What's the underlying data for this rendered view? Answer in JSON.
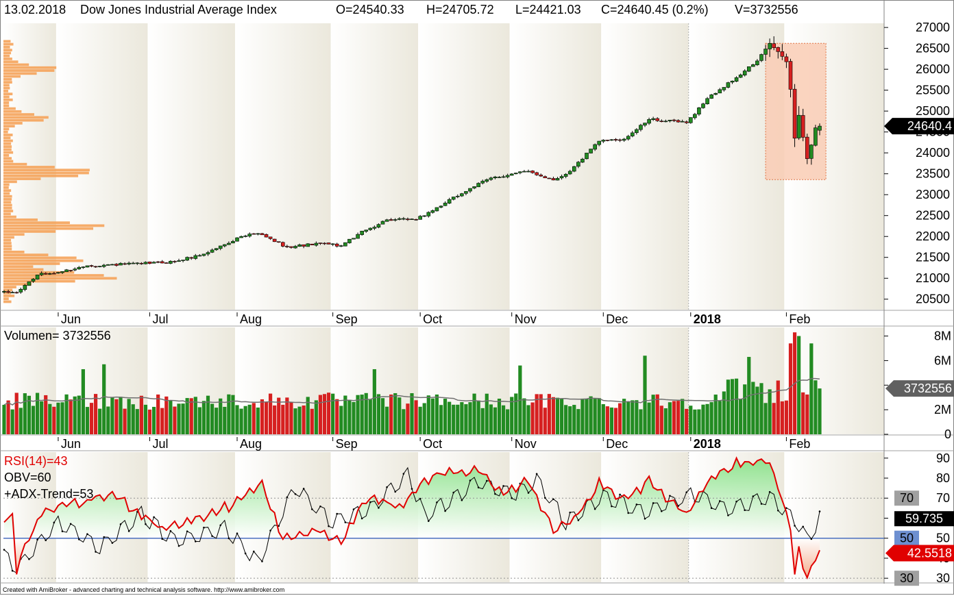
{
  "header": {
    "date": "13.02.2018",
    "symbol": "Dow Jones Industrial Average Index",
    "open": "O=24540.33",
    "high": "H=24705.72",
    "low": "L=24421.03",
    "close": "C=24640.45 (0.2%)",
    "volume": "V=3732556"
  },
  "month_labels": [
    "Jun",
    "Jul",
    "Aug",
    "Sep",
    "Oct",
    "Nov",
    "Dec",
    "2018",
    "Feb"
  ],
  "footer": "Created with AmiBroker - advanced charting and technical analysis software. http://www.amibroker.com",
  "colors": {
    "up": "#228b22",
    "down": "#d62020",
    "volume_profile": "#f5a35a",
    "rsi": "#e00000",
    "obv": "#000000",
    "level50": "#4a6fc0",
    "highlight_box": "#f9cdb5",
    "price_tag": "#000000",
    "volume_tag": "#606060"
  },
  "chart_data": [
    {
      "type": "candlestick",
      "title": "Dow Jones Industrial Average Index",
      "y_ticks": [
        20500,
        21000,
        21500,
        22000,
        22500,
        23000,
        23500,
        24000,
        24500,
        25000,
        25500,
        26000,
        26500,
        27000
      ],
      "ylim": [
        20250,
        27100
      ],
      "last_price_label": "24640.4",
      "last_price": 24640.45,
      "waypoints": [
        {
          "date": "2017-05-18",
          "close": 20660
        },
        {
          "date": "2017-05-25",
          "close": 21080
        },
        {
          "date": "2017-06-01",
          "close": 21140
        },
        {
          "date": "2017-06-12",
          "close": 21300
        },
        {
          "date": "2017-06-29",
          "close": 21350
        },
        {
          "date": "2017-07-11",
          "close": 21400
        },
        {
          "date": "2017-07-20",
          "close": 21580
        },
        {
          "date": "2017-08-02",
          "close": 22000
        },
        {
          "date": "2017-08-08",
          "close": 22070
        },
        {
          "date": "2017-08-17",
          "close": 21750
        },
        {
          "date": "2017-08-29",
          "close": 21830
        },
        {
          "date": "2017-09-05",
          "close": 21780
        },
        {
          "date": "2017-09-11",
          "close": 22050
        },
        {
          "date": "2017-09-20",
          "close": 22400
        },
        {
          "date": "2017-09-29",
          "close": 22400
        },
        {
          "date": "2017-10-10",
          "close": 22800
        },
        {
          "date": "2017-10-18",
          "close": 23150
        },
        {
          "date": "2017-10-25",
          "close": 23400
        },
        {
          "date": "2017-11-07",
          "close": 23560
        },
        {
          "date": "2017-11-15",
          "close": 23350
        },
        {
          "date": "2017-11-21",
          "close": 23560
        },
        {
          "date": "2017-11-30",
          "close": 24280
        },
        {
          "date": "2017-12-04",
          "close": 24300
        },
        {
          "date": "2017-12-08",
          "close": 24330
        },
        {
          "date": "2017-12-18",
          "close": 24800
        },
        {
          "date": "2017-12-29",
          "close": 24720
        },
        {
          "date": "2018-01-05",
          "close": 25300
        },
        {
          "date": "2018-01-16",
          "close": 25800
        },
        {
          "date": "2018-01-23",
          "close": 26200
        },
        {
          "date": "2018-01-26",
          "close": 26620
        },
        {
          "date": "2018-02-01",
          "close": 26180
        },
        {
          "date": "2018-02-02",
          "close": 25520
        },
        {
          "date": "2018-02-05",
          "close": 24350
        },
        {
          "date": "2018-02-06",
          "close": 24900
        },
        {
          "date": "2018-02-08",
          "close": 23860
        },
        {
          "date": "2018-02-09",
          "close": 24190
        },
        {
          "date": "2018-02-12",
          "close": 24600
        },
        {
          "date": "2018-02-13",
          "close": 24640
        }
      ],
      "highlight_region": {
        "from": "2018-01-26",
        "to": "2018-02-13",
        "low": 23360,
        "high": 26620
      },
      "volume_profile": {
        "price_bins_from": 20400,
        "price_bins_to": 26700,
        "peaks": [
          {
            "price": 20990,
            "strength": 1.0
          },
          {
            "price": 21400,
            "strength": 0.85
          },
          {
            "price": 22200,
            "strength": 0.8
          },
          {
            "price": 23500,
            "strength": 1.0
          },
          {
            "price": 24800,
            "strength": 0.3
          },
          {
            "price": 25950,
            "strength": 0.4
          }
        ]
      }
    },
    {
      "type": "bar",
      "title": "Volumen= 3732556",
      "y_ticks": [
        0,
        2,
        4,
        6,
        8
      ],
      "y_tick_labels": [
        "0",
        "2M",
        "4M",
        "6M",
        "8M"
      ],
      "ylim": [
        0,
        8.7
      ],
      "unit": "millions",
      "last_value_label": "3732556",
      "last_value": 3.73,
      "notable_bars": [
        {
          "date": "2017-06-09",
          "volume": 5.3
        },
        {
          "date": "2017-06-16",
          "volume": 5.7
        },
        {
          "date": "2017-09-15",
          "volume": 5.3
        },
        {
          "date": "2017-11-03",
          "volume": 5.6
        },
        {
          "date": "2017-12-15",
          "volume": 6.4
        },
        {
          "date": "2018-01-19",
          "volume": 6.3
        },
        {
          "date": "2018-02-02",
          "volume": 7.4
        },
        {
          "date": "2018-02-05",
          "volume": 8.3
        },
        {
          "date": "2018-02-06",
          "volume": 8.0
        },
        {
          "date": "2018-02-09",
          "volume": 7.4
        }
      ]
    },
    {
      "type": "line",
      "title": "RSI(14)=43",
      "legend": [
        "RSI(14)=43",
        "OBV=60",
        "+ADX-Trend=53"
      ],
      "y_ticks": [
        30,
        40,
        50,
        60,
        70,
        80,
        90
      ],
      "ylim": [
        28,
        93
      ],
      "levels": [
        30,
        50,
        70
      ],
      "value_tags": [
        {
          "label": "70",
          "value": 70
        },
        {
          "label": "59.735",
          "value": 59.735
        },
        {
          "label": "50",
          "value": 50
        },
        {
          "label": "42.5518",
          "value": 42.55
        },
        {
          "label": "30",
          "value": 30
        }
      ],
      "series": [
        {
          "name": "RSI(14)",
          "points": [
            {
              "date": "2017-05-15",
              "value": 60
            },
            {
              "date": "2017-05-17",
              "value": 62
            },
            {
              "date": "2017-05-18",
              "value": 35
            },
            {
              "date": "2017-05-26",
              "value": 63
            },
            {
              "date": "2017-06-09",
              "value": 68
            },
            {
              "date": "2017-06-20",
              "value": 72
            },
            {
              "date": "2017-07-06",
              "value": 55
            },
            {
              "date": "2017-07-19",
              "value": 60
            },
            {
              "date": "2017-07-28",
              "value": 66
            },
            {
              "date": "2017-08-09",
              "value": 77
            },
            {
              "date": "2017-08-16",
              "value": 49
            },
            {
              "date": "2017-08-28",
              "value": 54
            },
            {
              "date": "2017-09-05",
              "value": 48
            },
            {
              "date": "2017-09-13",
              "value": 70
            },
            {
              "date": "2017-09-25",
              "value": 66
            },
            {
              "date": "2017-10-05",
              "value": 82
            },
            {
              "date": "2017-10-20",
              "value": 84
            },
            {
              "date": "2017-10-27",
              "value": 73
            },
            {
              "date": "2017-11-07",
              "value": 78
            },
            {
              "date": "2017-11-15",
              "value": 53
            },
            {
              "date": "2017-11-22",
              "value": 60
            },
            {
              "date": "2017-11-30",
              "value": 77
            },
            {
              "date": "2017-12-08",
              "value": 70
            },
            {
              "date": "2017-12-18",
              "value": 78
            },
            {
              "date": "2017-12-29",
              "value": 62
            },
            {
              "date": "2018-01-05",
              "value": 79
            },
            {
              "date": "2018-01-16",
              "value": 87
            },
            {
              "date": "2018-01-26",
              "value": 89
            },
            {
              "date": "2018-02-02",
              "value": 55
            },
            {
              "date": "2018-02-05",
              "value": 31
            },
            {
              "date": "2018-02-06",
              "value": 43
            },
            {
              "date": "2018-02-08",
              "value": 31
            },
            {
              "date": "2018-02-13",
              "value": 43
            }
          ]
        },
        {
          "name": "OBV",
          "points": [
            {
              "date": "2017-05-15",
              "value": 42
            },
            {
              "date": "2017-05-18",
              "value": 35
            },
            {
              "date": "2017-06-01",
              "value": 58
            },
            {
              "date": "2017-06-15",
              "value": 45
            },
            {
              "date": "2017-06-29",
              "value": 62
            },
            {
              "date": "2017-07-11",
              "value": 48
            },
            {
              "date": "2017-07-27",
              "value": 55
            },
            {
              "date": "2017-08-08",
              "value": 38
            },
            {
              "date": "2017-08-21",
              "value": 75
            },
            {
              "date": "2017-09-01",
              "value": 58
            },
            {
              "date": "2017-09-15",
              "value": 66
            },
            {
              "date": "2017-09-27",
              "value": 82
            },
            {
              "date": "2017-10-03",
              "value": 61
            },
            {
              "date": "2017-10-20",
              "value": 78
            },
            {
              "date": "2017-11-02",
              "value": 72
            },
            {
              "date": "2017-11-09",
              "value": 79
            },
            {
              "date": "2017-11-20",
              "value": 58
            },
            {
              "date": "2017-12-01",
              "value": 71
            },
            {
              "date": "2017-12-15",
              "value": 63
            },
            {
              "date": "2018-01-02",
              "value": 72
            },
            {
              "date": "2018-01-12",
              "value": 64
            },
            {
              "date": "2018-01-26",
              "value": 71
            },
            {
              "date": "2018-02-02",
              "value": 61
            },
            {
              "date": "2018-02-08",
              "value": 50
            },
            {
              "date": "2018-02-13",
              "value": 60
            }
          ]
        }
      ]
    }
  ]
}
